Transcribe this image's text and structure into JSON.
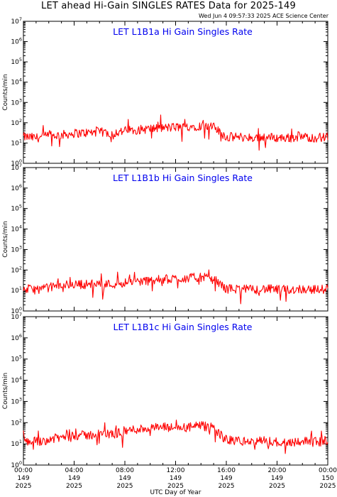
{
  "title": "LET ahead Hi-Gain SINGLES RATES Data for 2025-149",
  "timestamp": "Wed Jun  4 09:57:33 2025 ACE Science Center",
  "colors": {
    "series": "#ff0000",
    "panel_title": "#0000ee",
    "axis": "#000000"
  },
  "chart_data": [
    {
      "type": "line",
      "title": "LET L1B1a Hi Gain Singles Rate",
      "ylabel": "Counts/min",
      "xlabel": "UTC Day of Year",
      "yscale": "log",
      "ylim": [
        1,
        10000000
      ],
      "ytick_exponents": [
        0,
        1,
        2,
        3,
        4,
        5,
        6,
        7
      ],
      "x_hours": [
        0,
        1,
        2,
        3,
        4,
        5,
        6,
        7,
        8,
        9,
        10,
        11,
        12,
        13,
        14,
        15,
        16,
        17,
        18,
        19,
        20,
        21,
        22,
        23,
        24
      ],
      "series": [
        {
          "values": [
            20,
            18,
            22,
            25,
            30,
            32,
            35,
            30,
            40,
            45,
            50,
            55,
            60,
            65,
            70,
            60,
            20,
            20,
            18,
            20,
            18,
            18,
            20,
            18,
            20
          ]
        }
      ]
    },
    {
      "type": "line",
      "title": "LET L1B1b Hi Gain Singles Rate",
      "ylabel": "Counts/min",
      "xlabel": "UTC Day of Year",
      "yscale": "log",
      "ylim": [
        1,
        10000000
      ],
      "ytick_exponents": [
        0,
        1,
        2,
        3,
        4,
        5,
        6,
        7
      ],
      "x_hours": [
        0,
        1,
        2,
        3,
        4,
        5,
        6,
        7,
        8,
        9,
        10,
        11,
        12,
        13,
        14,
        15,
        16,
        17,
        18,
        19,
        20,
        21,
        22,
        23,
        24
      ],
      "series": [
        {
          "values": [
            12,
            11,
            14,
            18,
            20,
            20,
            22,
            20,
            25,
            28,
            30,
            35,
            38,
            40,
            45,
            35,
            12,
            12,
            11,
            12,
            11,
            11,
            12,
            11,
            12
          ]
        }
      ]
    },
    {
      "type": "line",
      "title": "LET L1B1c Hi Gain Singles Rate",
      "ylabel": "Counts/min",
      "xlabel": "UTC Day of Year",
      "yscale": "log",
      "ylim": [
        1,
        10000000
      ],
      "ytick_exponents": [
        0,
        1,
        2,
        3,
        4,
        5,
        6,
        7
      ],
      "x_hours": [
        0,
        1,
        2,
        3,
        4,
        5,
        6,
        7,
        8,
        9,
        10,
        11,
        12,
        13,
        14,
        15,
        16,
        17,
        18,
        19,
        20,
        21,
        22,
        23,
        24
      ],
      "series": [
        {
          "values": [
            14,
            13,
            16,
            20,
            25,
            25,
            30,
            28,
            40,
            50,
            55,
            60,
            55,
            60,
            70,
            55,
            15,
            14,
            12,
            14,
            12,
            12,
            14,
            12,
            14
          ]
        }
      ]
    }
  ],
  "x_axis": {
    "label": "UTC Day of Year",
    "ticks": [
      {
        "hour": 0,
        "time": "00:00",
        "doy": "149",
        "year": "2025"
      },
      {
        "hour": 4,
        "time": "04:00",
        "doy": "149",
        "year": "2025"
      },
      {
        "hour": 8,
        "time": "08:00",
        "doy": "149",
        "year": "2025"
      },
      {
        "hour": 12,
        "time": "12:00",
        "doy": "149",
        "year": "2025"
      },
      {
        "hour": 16,
        "time": "16:00",
        "doy": "149",
        "year": "2025"
      },
      {
        "hour": 20,
        "time": "20:00",
        "doy": "149",
        "year": "2025"
      },
      {
        "hour": 24,
        "time": "00:00",
        "doy": "150",
        "year": "2025"
      }
    ]
  }
}
